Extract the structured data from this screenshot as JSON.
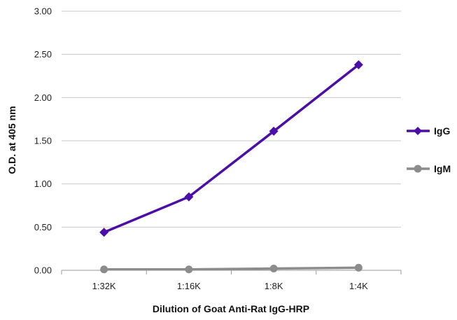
{
  "chart_data": {
    "type": "line",
    "title": "",
    "xlabel": "Dilution of Goat Anti-Rat IgG-HRP",
    "ylabel": "O.D. at 405 nm",
    "categories": [
      "1:32K",
      "1:16K",
      "1:8K",
      "1:4K"
    ],
    "ylim": [
      0,
      3
    ],
    "yticks": [
      "0.00",
      "0.50",
      "1.00",
      "1.50",
      "2.00",
      "2.50",
      "3.00"
    ],
    "grid": true,
    "legend_position": "right",
    "series": [
      {
        "name": "IgG",
        "values": [
          0.44,
          0.85,
          1.61,
          2.38
        ],
        "color": "#4B0EA8",
        "marker": "diamond"
      },
      {
        "name": "IgM",
        "values": [
          0.01,
          0.01,
          0.02,
          0.03
        ],
        "color": "#8C8C8C",
        "marker": "circle"
      }
    ]
  }
}
